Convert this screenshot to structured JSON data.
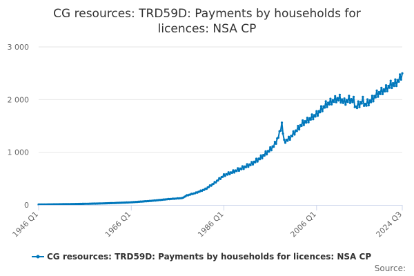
{
  "chart_data": {
    "type": "line",
    "title": "CG resources: TRD59D: Payments by households for licences: NSA CP",
    "title_lines": [
      "CG resources: TRD59D: Payments by households for",
      "licences: NSA CP"
    ],
    "xlabel": "",
    "ylabel": "",
    "x_tick_labels": [
      "1946 Q1",
      "1966 Q1",
      "1986 Q1",
      "2006 Q1",
      "2024 Q3"
    ],
    "y_tick_labels": [
      "0",
      "1 000",
      "2 000",
      "3 000"
    ],
    "ylim": [
      0,
      3000
    ],
    "xlim": [
      1946.0,
      2024.5
    ],
    "grid": true,
    "legend_position": "bottom",
    "source_label": "Source:",
    "series": [
      {
        "name": "CG resources: TRD59D: Payments by households for licences: NSA CP",
        "color": "#0077bb",
        "x": [
          1946.0,
          1950.0,
          1954.0,
          1958.0,
          1962.0,
          1966.0,
          1970.0,
          1974.0,
          1977.0,
          1978.0,
          1980.0,
          1982.0,
          1984.0,
          1986.0,
          1988.0,
          1990.0,
          1992.0,
          1994.0,
          1996.0,
          1997.0,
          1998.0,
          1998.5,
          1999.0,
          2000.0,
          2002.0,
          2003.0,
          2004.0,
          2006.0,
          2008.0,
          2010.0,
          2011.0,
          2012.0,
          2013.0,
          2014.0,
          2014.5,
          2016.0,
          2016.5,
          2018.0,
          2019.0,
          2020.0,
          2021.0,
          2022.0,
          2023.0,
          2024.0,
          2024.5
        ],
        "y": [
          8,
          12,
          18,
          25,
          35,
          50,
          75,
          110,
          130,
          180,
          230,
          300,
          420,
          560,
          630,
          700,
          780,
          900,
          1050,
          1150,
          1350,
          1550,
          1200,
          1250,
          1450,
          1550,
          1600,
          1720,
          1900,
          2000,
          2020,
          1950,
          2000,
          1980,
          1850,
          1980,
          1900,
          2000,
          2100,
          2150,
          2200,
          2280,
          2300,
          2400,
          2480
        ],
        "seasonal_amplitude": [
          0,
          0,
          0,
          1,
          1,
          2,
          3,
          4,
          5,
          8,
          12,
          18,
          25,
          40,
          50,
          60,
          60,
          75,
          80,
          85,
          90,
          90,
          70,
          80,
          90,
          100,
          100,
          110,
          120,
          120,
          130,
          130,
          130,
          130,
          130,
          130,
          130,
          130,
          130,
          130,
          130,
          140,
          150,
          140,
          130
        ]
      }
    ]
  }
}
